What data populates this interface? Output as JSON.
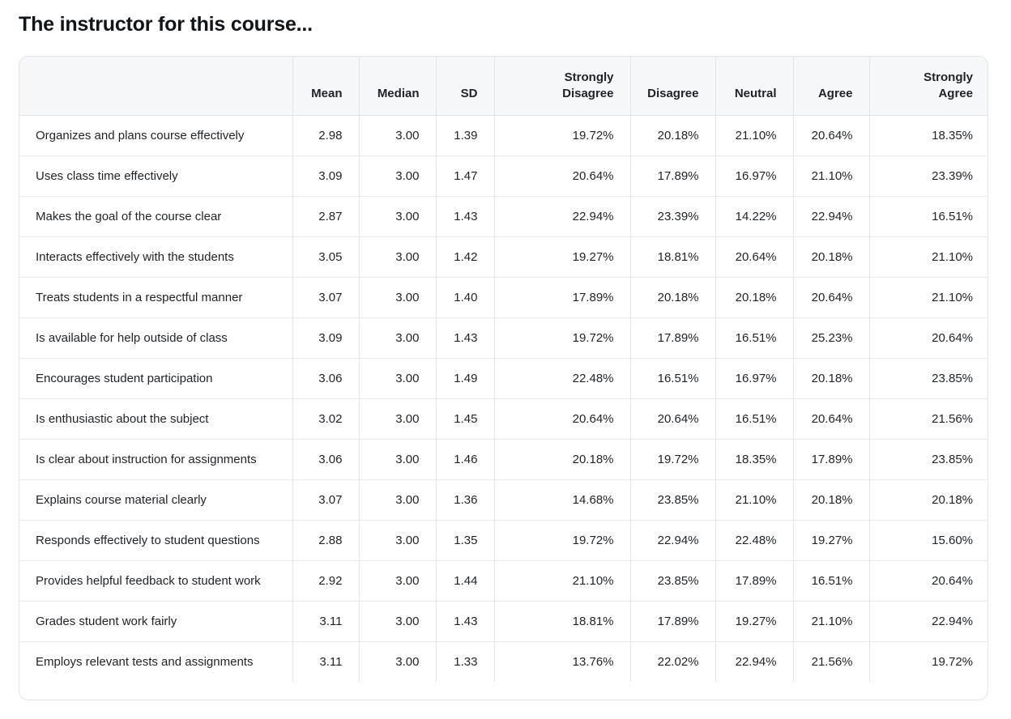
{
  "page": {
    "title": "The instructor for this course..."
  },
  "table": {
    "headers": {
      "item": "",
      "mean": "Mean",
      "median": "Median",
      "sd": "SD",
      "strongly_disagree_line1": "Strongly",
      "strongly_disagree_line2": "Disagree",
      "disagree": "Disagree",
      "neutral": "Neutral",
      "agree": "Agree",
      "strongly_agree_line1": "Strongly",
      "strongly_agree_line2": "Agree"
    },
    "rows": [
      {
        "item": "Organizes and plans course effectively",
        "mean": "2.98",
        "median": "3.00",
        "sd": "1.39",
        "strongly_disagree": "19.72%",
        "disagree": "20.18%",
        "neutral": "21.10%",
        "agree": "20.64%",
        "strongly_agree": "18.35%"
      },
      {
        "item": "Uses class time effectively",
        "mean": "3.09",
        "median": "3.00",
        "sd": "1.47",
        "strongly_disagree": "20.64%",
        "disagree": "17.89%",
        "neutral": "16.97%",
        "agree": "21.10%",
        "strongly_agree": "23.39%"
      },
      {
        "item": "Makes the goal of the course clear",
        "mean": "2.87",
        "median": "3.00",
        "sd": "1.43",
        "strongly_disagree": "22.94%",
        "disagree": "23.39%",
        "neutral": "14.22%",
        "agree": "22.94%",
        "strongly_agree": "16.51%"
      },
      {
        "item": "Interacts effectively with the students",
        "mean": "3.05",
        "median": "3.00",
        "sd": "1.42",
        "strongly_disagree": "19.27%",
        "disagree": "18.81%",
        "neutral": "20.64%",
        "agree": "20.18%",
        "strongly_agree": "21.10%"
      },
      {
        "item": "Treats students in a respectful manner",
        "mean": "3.07",
        "median": "3.00",
        "sd": "1.40",
        "strongly_disagree": "17.89%",
        "disagree": "20.18%",
        "neutral": "20.18%",
        "agree": "20.64%",
        "strongly_agree": "21.10%"
      },
      {
        "item": "Is available for help outside of class",
        "mean": "3.09",
        "median": "3.00",
        "sd": "1.43",
        "strongly_disagree": "19.72%",
        "disagree": "17.89%",
        "neutral": "16.51%",
        "agree": "25.23%",
        "strongly_agree": "20.64%"
      },
      {
        "item": "Encourages student participation",
        "mean": "3.06",
        "median": "3.00",
        "sd": "1.49",
        "strongly_disagree": "22.48%",
        "disagree": "16.51%",
        "neutral": "16.97%",
        "agree": "20.18%",
        "strongly_agree": "23.85%"
      },
      {
        "item": "Is enthusiastic about the subject",
        "mean": "3.02",
        "median": "3.00",
        "sd": "1.45",
        "strongly_disagree": "20.64%",
        "disagree": "20.64%",
        "neutral": "16.51%",
        "agree": "20.64%",
        "strongly_agree": "21.56%"
      },
      {
        "item": "Is clear about instruction for assignments",
        "mean": "3.06",
        "median": "3.00",
        "sd": "1.46",
        "strongly_disagree": "20.18%",
        "disagree": "19.72%",
        "neutral": "18.35%",
        "agree": "17.89%",
        "strongly_agree": "23.85%"
      },
      {
        "item": "Explains course material clearly",
        "mean": "3.07",
        "median": "3.00",
        "sd": "1.36",
        "strongly_disagree": "14.68%",
        "disagree": "23.85%",
        "neutral": "21.10%",
        "agree": "20.18%",
        "strongly_agree": "20.18%"
      },
      {
        "item": "Responds effectively to student questions",
        "mean": "2.88",
        "median": "3.00",
        "sd": "1.35",
        "strongly_disagree": "19.72%",
        "disagree": "22.94%",
        "neutral": "22.48%",
        "agree": "19.27%",
        "strongly_agree": "15.60%"
      },
      {
        "item": "Provides helpful feedback to student work",
        "mean": "2.92",
        "median": "3.00",
        "sd": "1.44",
        "strongly_disagree": "21.10%",
        "disagree": "23.85%",
        "neutral": "17.89%",
        "agree": "16.51%",
        "strongly_agree": "20.64%"
      },
      {
        "item": "Grades student work fairly",
        "mean": "3.11",
        "median": "3.00",
        "sd": "1.43",
        "strongly_disagree": "18.81%",
        "disagree": "17.89%",
        "neutral": "19.27%",
        "agree": "21.10%",
        "strongly_agree": "22.94%"
      },
      {
        "item": "Employs relevant tests and assignments",
        "mean": "3.11",
        "median": "3.00",
        "sd": "1.33",
        "strongly_disagree": "13.76%",
        "disagree": "22.02%",
        "neutral": "22.94%",
        "agree": "21.56%",
        "strongly_agree": "19.72%"
      }
    ]
  }
}
